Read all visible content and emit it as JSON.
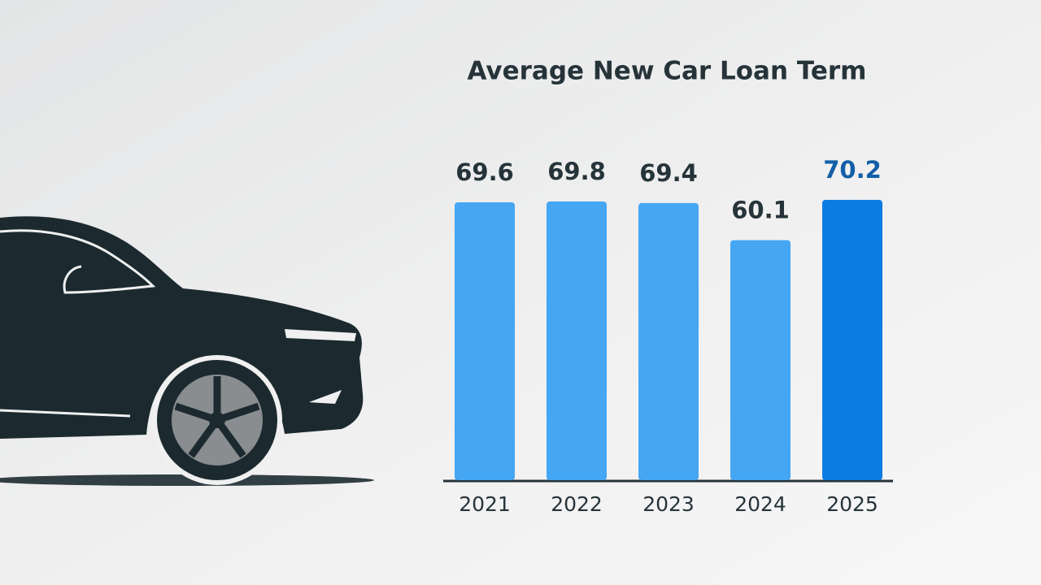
{
  "chart_data": {
    "type": "bar",
    "title": "Average New Car Loan Term",
    "categories": [
      "2021",
      "2022",
      "2023",
      "2024",
      "2025"
    ],
    "values": [
      69.6,
      69.8,
      69.4,
      60.1,
      70.2
    ],
    "colors": [
      "#45a6f3",
      "#45a6f3",
      "#45a6f3",
      "#45a6f3",
      "#0b7ce2"
    ],
    "label_colors": [
      "#26343a",
      "#26343a",
      "#26343a",
      "#26343a",
      "#135fa8"
    ]
  }
}
